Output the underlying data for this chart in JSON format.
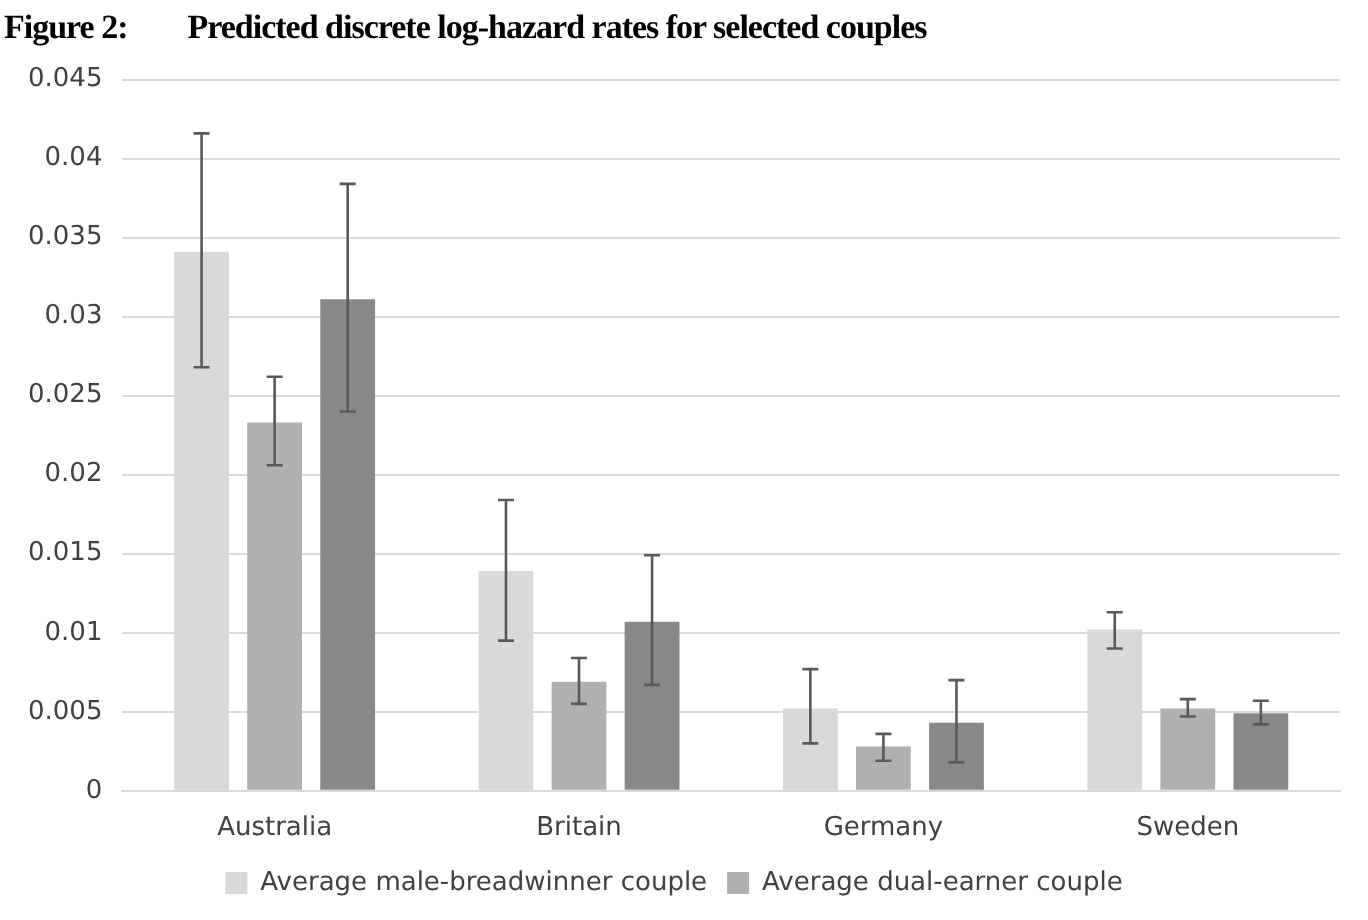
{
  "chart_data": {
    "type": "bar",
    "title": "Figure 2:        Predicted discrete log-hazard rates for selected couples",
    "categories": [
      "Australia",
      "Britain",
      "Germany",
      "Sweden"
    ],
    "series": [
      {
        "name": "Average male-breadwinner couple",
        "color": "#d9d9d9",
        "values": [
          0.0341,
          0.0139,
          0.0052,
          0.0102
        ],
        "errors": [
          [
            0.0268,
            0.0416
          ],
          [
            0.0095,
            0.0184
          ],
          [
            0.003,
            0.0077
          ],
          [
            0.009,
            0.0113
          ]
        ]
      },
      {
        "name": "Average dual-earner couple",
        "color": "#b0b0b0",
        "values": [
          0.0233,
          0.0069,
          0.0028,
          0.0052
        ],
        "errors": [
          [
            0.0206,
            0.0262
          ],
          [
            0.0055,
            0.0084
          ],
          [
            0.0019,
            0.0036
          ],
          [
            0.0047,
            0.0058
          ]
        ]
      },
      {
        "color": "#888888",
        "values": [
          0.0311,
          0.0107,
          0.0043,
          0.0049
        ],
        "errors": [
          [
            0.024,
            0.0384
          ],
          [
            0.0067,
            0.0149
          ],
          [
            0.0018,
            0.007
          ],
          [
            0.0042,
            0.0057
          ]
        ]
      }
    ],
    "ylim": [
      0,
      0.045
    ],
    "yticks": [
      0,
      0.005,
      0.01,
      0.015,
      0.02,
      0.025,
      0.03,
      0.035,
      0.04,
      0.045
    ],
    "grid": "y",
    "legend": "bottom"
  }
}
